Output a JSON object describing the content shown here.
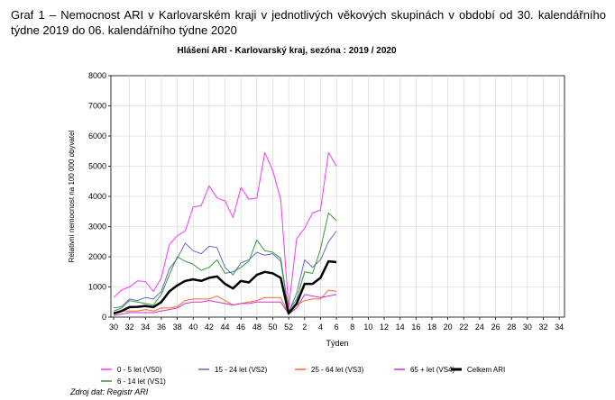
{
  "document": {
    "caption": "Graf 1 – Nemocnost ARI v Karlovarském kraji v jednotlivých věkových skupinách v období od 30. kalendářního týdne 2019 do 06. kalendářního týdne 2020",
    "source": "Zdroj dat: Registr ARI"
  },
  "chart_data": {
    "type": "line",
    "title": "Hlášení ARI  -  Karlovarský kraj, sezóna : 2019 / 2020",
    "xlabel": "Týden",
    "ylabel": "Relativní nemocnost na 100 000 obyvatel",
    "ylim": [
      0,
      8000
    ],
    "yticks": [
      "0",
      "1000",
      "2000",
      "3000",
      "4000",
      "5000",
      "6000",
      "7000",
      "8000"
    ],
    "xticks": [
      "30",
      "32",
      "34",
      "36",
      "38",
      "40",
      "42",
      "44",
      "46",
      "48",
      "50",
      "52",
      "2",
      "4",
      "6",
      "8",
      "10",
      "12",
      "14",
      "16",
      "18",
      "20",
      "22",
      "24",
      "26",
      "28",
      "30",
      "32",
      "34"
    ],
    "weeks": [
      "30",
      "31",
      "32",
      "33",
      "34",
      "35",
      "36",
      "37",
      "38",
      "39",
      "40",
      "41",
      "42",
      "43",
      "44",
      "45",
      "46",
      "47",
      "48",
      "49",
      "50",
      "51",
      "52",
      "1",
      "2",
      "3",
      "4",
      "5",
      "6"
    ],
    "grid": true,
    "legend_position": "bottom",
    "series": [
      {
        "name": "0 - 5 let (VS0)",
        "color": "#ff33ff",
        "width": 1,
        "values": [
          650,
          900,
          1000,
          1200,
          1180,
          850,
          1300,
          2400,
          2700,
          2850,
          3650,
          3700,
          4350,
          3950,
          3850,
          3300,
          4300,
          3900,
          3950,
          5450,
          4850,
          3900,
          300,
          2600,
          2950,
          3450,
          3550,
          5450,
          5000
        ]
      },
      {
        "name": "15 - 24 let (VS2)",
        "color": "#6666cc",
        "width": 1,
        "values": [
          300,
          350,
          600,
          550,
          650,
          600,
          850,
          1600,
          1950,
          2450,
          2200,
          2100,
          2350,
          2300,
          1650,
          1400,
          1800,
          1900,
          2150,
          2050,
          2100,
          1850,
          150,
          800,
          1900,
          1650,
          1900,
          2500,
          2850
        ]
      },
      {
        "name": "25 - 64 let (VS3)",
        "color": "#ff6633",
        "width": 1,
        "values": [
          150,
          200,
          200,
          200,
          250,
          200,
          300,
          300,
          350,
          550,
          600,
          600,
          600,
          700,
          550,
          400,
          450,
          500,
          550,
          650,
          650,
          650,
          100,
          400,
          550,
          600,
          600,
          900,
          850
        ]
      },
      {
        "name": "65 + let (VS4)",
        "color": "#cc33cc",
        "width": 1,
        "values": [
          50,
          100,
          150,
          150,
          150,
          150,
          200,
          250,
          300,
          450,
          500,
          500,
          550,
          500,
          450,
          400,
          450,
          450,
          500,
          500,
          500,
          500,
          100,
          300,
          750,
          700,
          650,
          700,
          750
        ]
      },
      {
        "name": "Celkem ARI",
        "color": "#000000",
        "width": 2.5,
        "values": [
          120,
          200,
          330,
          340,
          370,
          330,
          500,
          850,
          1050,
          1200,
          1250,
          1200,
          1300,
          1350,
          1100,
          950,
          1200,
          1150,
          1400,
          1500,
          1450,
          1300,
          120,
          450,
          1100,
          1100,
          1300,
          1850,
          1820
        ]
      },
      {
        "name": "6 - 14 let (VS1)",
        "color": "#339933",
        "width": 1,
        "values": [
          200,
          300,
          550,
          500,
          450,
          400,
          750,
          1400,
          2000,
          1850,
          1750,
          1550,
          1650,
          1900,
          1450,
          1500,
          1650,
          1850,
          2550,
          2200,
          2150,
          1950,
          200,
          600,
          1500,
          1450,
          2250,
          3450,
          3200
        ]
      }
    ]
  }
}
